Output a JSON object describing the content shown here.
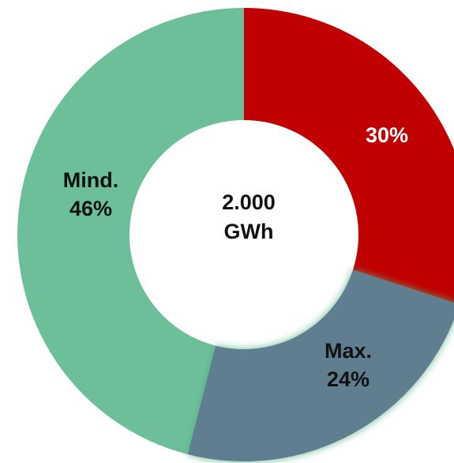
{
  "chart_data": {
    "type": "pie",
    "donut": true,
    "center_text": [
      "2.000",
      "GWh"
    ],
    "slices": [
      {
        "label_lines": [
          "30%"
        ],
        "value": 30,
        "color": "#c00000",
        "text_color": "#ffffff",
        "shadow": false
      },
      {
        "label_lines": [
          "Max.",
          "24%"
        ],
        "value": 24,
        "color": "#5f7f91",
        "text_color": "#111111",
        "shadow": true
      },
      {
        "label_lines": [
          "Mind.",
          "46%"
        ],
        "value": 46,
        "color": "#6dbf9a",
        "text_color": "#111111",
        "shadow": false
      }
    ]
  }
}
